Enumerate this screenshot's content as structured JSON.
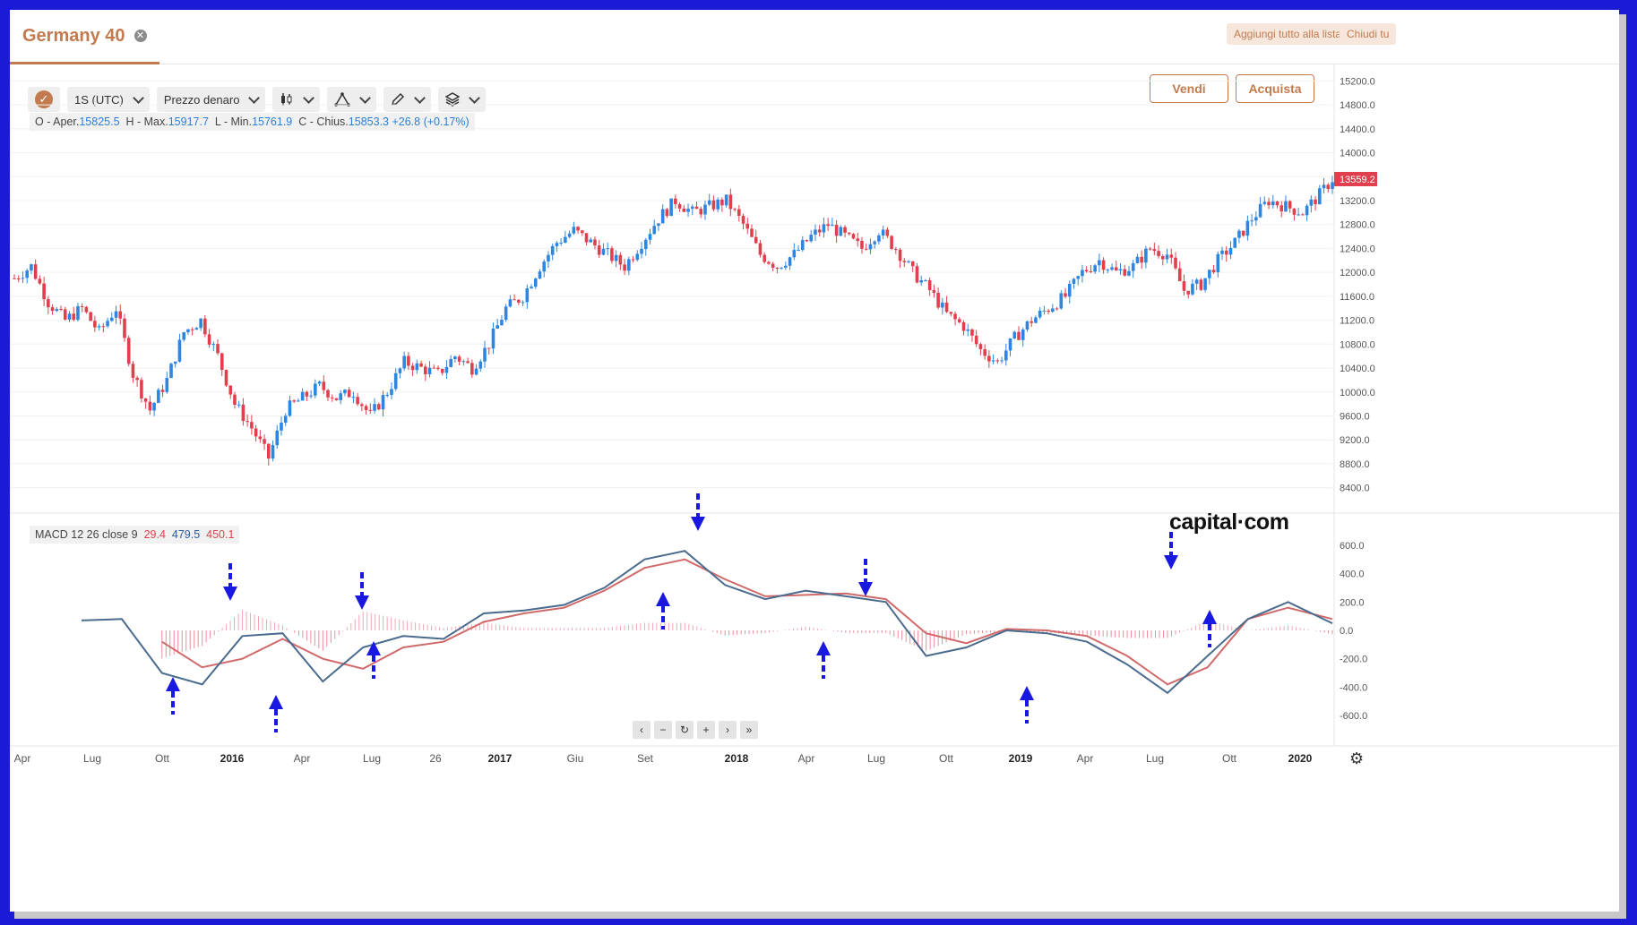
{
  "tab": {
    "title": "Germany 40"
  },
  "top_buttons": {
    "add_all": "Aggiungi tutto alla lista",
    "close": "Chiudi tu"
  },
  "toolbar": {
    "interval": "1S (UTC)",
    "price_type": "Prezzo denaro"
  },
  "ohlc": {
    "open_label": "O - Aper.",
    "open": "15825.5",
    "high_label": "H - Max.",
    "high": "15917.7",
    "low_label": "L - Min.",
    "low": "15761.9",
    "close_label": "C - Chius.",
    "close": "15853.3",
    "change": "+26.8 (+0.17%)"
  },
  "trade": {
    "sell": "Vendi",
    "buy": "Acquista"
  },
  "macd_label": {
    "text": "MACD 12 26 close 9",
    "v1": "29.4",
    "v2": "479.5",
    "v3": "450.1"
  },
  "brand": "capital·com",
  "colors": {
    "up": "#2f86e0",
    "down": "#e0404e",
    "macd": "#4a6b8e",
    "signal": "#d06a6a",
    "arrow": "#1818e0",
    "accent": "#c27b4e"
  },
  "chart_data": [
    {
      "type": "candlestick",
      "title": "Germany 40",
      "period": "weekly",
      "y_ticks": [
        "15200.0",
        "14800.0",
        "14400.0",
        "14000.0",
        "13600.0",
        "13200.0",
        "12800.0",
        "12400.0",
        "12000.0",
        "11600.0",
        "11200.0",
        "10800.0",
        "10400.0",
        "10000.0",
        "9600.0",
        "9200.0",
        "8800.0",
        "8400.0"
      ],
      "ylim": [
        8200,
        15400
      ],
      "last_price": "13559.2",
      "close_path": [
        [
          0,
          11900
        ],
        [
          4,
          12100
        ],
        [
          8,
          11500
        ],
        [
          12,
          11200
        ],
        [
          16,
          11400
        ],
        [
          20,
          11000
        ],
        [
          24,
          11400
        ],
        [
          28,
          10300
        ],
        [
          32,
          9700
        ],
        [
          36,
          10200
        ],
        [
          40,
          11000
        ],
        [
          44,
          11200
        ],
        [
          48,
          10600
        ],
        [
          52,
          9800
        ],
        [
          56,
          9400
        ],
        [
          60,
          8900
        ],
        [
          64,
          9700
        ],
        [
          68,
          9900
        ],
        [
          72,
          10100
        ],
        [
          76,
          9900
        ],
        [
          80,
          10000
        ],
        [
          84,
          9600
        ],
        [
          88,
          10000
        ],
        [
          92,
          10500
        ],
        [
          96,
          10400
        ],
        [
          100,
          10300
        ],
        [
          104,
          10600
        ],
        [
          108,
          10400
        ],
        [
          112,
          10800
        ],
        [
          116,
          11400
        ],
        [
          120,
          11600
        ],
        [
          124,
          12100
        ],
        [
          128,
          12500
        ],
        [
          132,
          12700
        ],
        [
          136,
          12500
        ],
        [
          140,
          12300
        ],
        [
          144,
          12100
        ],
        [
          148,
          12500
        ],
        [
          152,
          12900
        ],
        [
          156,
          13200
        ],
        [
          160,
          13000
        ],
        [
          164,
          13100
        ],
        [
          168,
          13200
        ],
        [
          172,
          12800
        ],
        [
          176,
          12300
        ],
        [
          180,
          12100
        ],
        [
          184,
          12300
        ],
        [
          188,
          12600
        ],
        [
          192,
          12800
        ],
        [
          196,
          12600
        ],
        [
          200,
          12400
        ],
        [
          204,
          12700
        ],
        [
          208,
          12400
        ],
        [
          212,
          12000
        ],
        [
          216,
          11700
        ],
        [
          220,
          11300
        ],
        [
          224,
          11100
        ],
        [
          228,
          10700
        ],
        [
          232,
          10500
        ],
        [
          236,
          10900
        ],
        [
          240,
          11200
        ],
        [
          244,
          11400
        ],
        [
          248,
          11600
        ],
        [
          252,
          12000
        ],
        [
          256,
          12200
        ],
        [
          260,
          12000
        ],
        [
          264,
          12100
        ],
        [
          268,
          12400
        ],
        [
          272,
          12300
        ],
        [
          276,
          11700
        ],
        [
          280,
          11800
        ],
        [
          284,
          12200
        ],
        [
          288,
          12500
        ],
        [
          292,
          12900
        ],
        [
          296,
          13200
        ],
        [
          300,
          13100
        ],
        [
          304,
          13000
        ],
        [
          308,
          13300
        ],
        [
          311,
          13559
        ]
      ]
    },
    {
      "type": "line",
      "title": "MACD 12 26 close 9",
      "y_ticks": [
        "600.0",
        "400.0",
        "200.0",
        "0.0",
        "-200.0",
        "-400.0",
        "-600.0"
      ],
      "ylim": [
        -700,
        700
      ],
      "x_ticks": [
        "Apr",
        "Lug",
        "Ott",
        "2016",
        "Apr",
        "Lug",
        "26",
        "2017",
        "Giu",
        "Set",
        "2018",
        "Apr",
        "Lug",
        "Ott",
        "2019",
        "Apr",
        "Lug",
        "Ott",
        "2020"
      ],
      "series": [
        {
          "x": [
            0,
            10,
            20,
            30,
            40,
            50,
            60,
            70,
            80,
            90,
            100,
            110,
            120,
            130,
            140,
            150,
            160,
            170,
            180,
            190,
            200,
            210,
            220,
            230,
            240,
            250,
            260,
            270,
            280,
            290,
            300,
            311
          ],
          "values": [
            70,
            80,
            -300,
            -380,
            -40,
            -20,
            -360,
            -120,
            -40,
            -60,
            120,
            140,
            180,
            300,
            500,
            560,
            320,
            220,
            280,
            240,
            200,
            -180,
            -120,
            0,
            -20,
            -80,
            -240,
            -440,
            -180,
            80,
            200,
            50
          ]
        },
        {
          "x": [
            0,
            10,
            20,
            30,
            40,
            50,
            60,
            70,
            80,
            90,
            100,
            110,
            120,
            130,
            140,
            150,
            160,
            170,
            180,
            190,
            200,
            210,
            220,
            230,
            240,
            250,
            260,
            270,
            280,
            290,
            300,
            311
          ],
          "values": [
            null,
            null,
            -80,
            -260,
            -200,
            -60,
            -200,
            -270,
            -120,
            -80,
            60,
            120,
            160,
            280,
            440,
            500,
            360,
            240,
            250,
            260,
            220,
            -20,
            -90,
            10,
            0,
            -40,
            -180,
            -380,
            -260,
            80,
            160,
            80
          ]
        }
      ]
    }
  ]
}
